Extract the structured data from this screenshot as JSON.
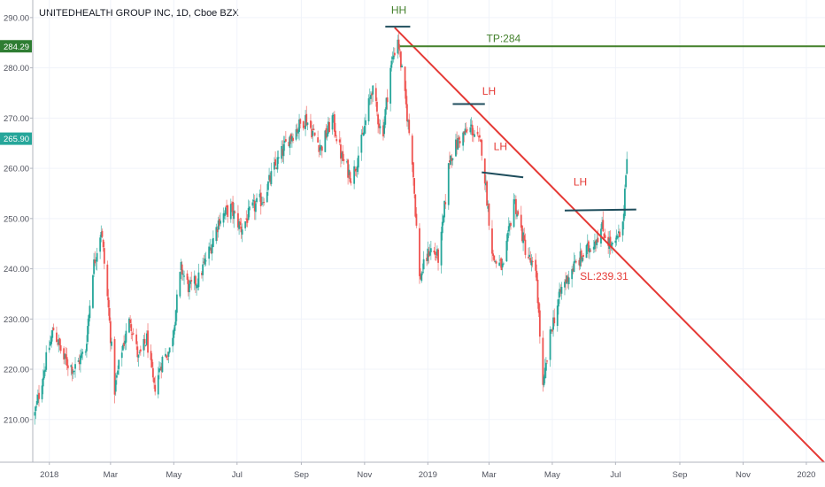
{
  "chart_data": {
    "type": "candlestick",
    "title": "UNITEDHEALTH GROUP INC, 1D, Cboe BZX",
    "y_ticks": [
      "290.00",
      "280.00",
      "270.00",
      "260.00",
      "250.00",
      "240.00",
      "230.00",
      "220.00",
      "210.00"
    ],
    "y_tick_values": [
      290,
      280,
      270,
      260,
      250,
      240,
      230,
      220,
      210
    ],
    "ylim": [
      201.5,
      293.5
    ],
    "x_tick_labels": [
      "2018",
      "Mar",
      "May",
      "Jul",
      "Sep",
      "Nov",
      "2019",
      "Mar",
      "May",
      "Jul",
      "Sep",
      "Nov",
      "2020"
    ],
    "x_tick_dates": [
      "2018-01-01",
      "2018-03-01",
      "2018-05-01",
      "2018-07-01",
      "2018-09-01",
      "2018-11-01",
      "2019-01-01",
      "2019-03-01",
      "2019-05-01",
      "2019-07-01",
      "2019-09-01",
      "2019-11-01",
      "2020-01-01"
    ],
    "xlim": [
      "2017-12-16",
      "2020-01-19"
    ],
    "price_labels": [
      {
        "value": 284.29,
        "text": "284.29",
        "color": "#2e7d32"
      },
      {
        "value": 265.9,
        "text": "265.90",
        "color": "#26a69a"
      }
    ],
    "colors": {
      "up": "#26a69a",
      "down": "#ef5350",
      "trendline": "#e53935",
      "target": "#43802b",
      "level": "#1e4d5c"
    },
    "price_path": [
      [
        "2017-12-18",
        211
      ],
      [
        "2017-12-28",
        221
      ],
      [
        "2018-01-05",
        228
      ],
      [
        "2018-01-15",
        222
      ],
      [
        "2018-01-25",
        220
      ],
      [
        "2018-02-05",
        224
      ],
      [
        "2018-02-12",
        240
      ],
      [
        "2018-02-20",
        248
      ],
      [
        "2018-02-27",
        232
      ],
      [
        "2018-03-05",
        216
      ],
      [
        "2018-03-12",
        224
      ],
      [
        "2018-03-20",
        230
      ],
      [
        "2018-03-28",
        222
      ],
      [
        "2018-04-05",
        226
      ],
      [
        "2018-04-12",
        216
      ],
      [
        "2018-04-20",
        222
      ],
      [
        "2018-04-28",
        224
      ],
      [
        "2018-05-08",
        240
      ],
      [
        "2018-05-16",
        236
      ],
      [
        "2018-05-25",
        238
      ],
      [
        "2018-06-05",
        244
      ],
      [
        "2018-06-14",
        250
      ],
      [
        "2018-06-25",
        252
      ],
      [
        "2018-07-05",
        248
      ],
      [
        "2018-07-16",
        252
      ],
      [
        "2018-07-26",
        254
      ],
      [
        "2018-08-06",
        260
      ],
      [
        "2018-08-20",
        266
      ],
      [
        "2018-09-05",
        270
      ],
      [
        "2018-09-20",
        264
      ],
      [
        "2018-10-01",
        270
      ],
      [
        "2018-10-10",
        262
      ],
      [
        "2018-10-20",
        258
      ],
      [
        "2018-10-30",
        266
      ],
      [
        "2018-11-08",
        276
      ],
      [
        "2018-11-18",
        266
      ],
      [
        "2018-11-26",
        280
      ],
      [
        "2018-12-03",
        286
      ],
      [
        "2018-12-10",
        274
      ],
      [
        "2018-12-17",
        262
      ],
      [
        "2018-12-24",
        238
      ],
      [
        "2019-01-03",
        244
      ],
      [
        "2019-01-12",
        242
      ],
      [
        "2019-01-22",
        262
      ],
      [
        "2019-02-01",
        266
      ],
      [
        "2019-02-12",
        268
      ],
      [
        "2019-02-22",
        264
      ],
      [
        "2019-03-05",
        242
      ],
      [
        "2019-03-15",
        240
      ],
      [
        "2019-03-25",
        254
      ],
      [
        "2019-04-05",
        244
      ],
      [
        "2019-04-16",
        238
      ],
      [
        "2019-04-22",
        216
      ],
      [
        "2019-04-30",
        228
      ],
      [
        "2019-05-10",
        236
      ],
      [
        "2019-05-20",
        240
      ],
      [
        "2019-06-05",
        244
      ],
      [
        "2019-06-18",
        248
      ],
      [
        "2019-06-28",
        244
      ],
      [
        "2019-07-08",
        248
      ],
      [
        "2019-07-11",
        260
      ],
      [
        "2019-07-13",
        265.9
      ]
    ],
    "annotations": [
      {
        "text": "HH",
        "color": "#43802b",
        "date": "2018-12-04",
        "value": 290.8
      },
      {
        "text": "TP:284",
        "color": "#43802b",
        "date": "2019-03-15",
        "value": 285.1
      },
      {
        "text": "LH",
        "color": "#e53935",
        "date": "2019-03-01",
        "value": 274.6
      },
      {
        "text": "LH",
        "color": "#e53935",
        "date": "2019-03-12",
        "value": 263.6
      },
      {
        "text": "LH",
        "color": "#e53935",
        "date": "2019-05-28",
        "value": 256.6
      },
      {
        "text": "SL:239.31",
        "color": "#e53935",
        "date": "2019-06-20",
        "value": 237.8
      }
    ],
    "lines": [
      {
        "kind": "trendline",
        "from": [
          "2018-11-30",
          288
        ],
        "to": [
          "2020-01-18",
          201.5
        ]
      },
      {
        "kind": "target",
        "from": [
          "2018-12-05",
          284.3
        ],
        "to": [
          "2020-01-19",
          284.3
        ]
      },
      {
        "kind": "level",
        "from": [
          "2018-11-21",
          288.2
        ],
        "to": [
          "2018-12-15",
          288.2
        ]
      },
      {
        "kind": "level",
        "from": [
          "2019-01-25",
          272.8
        ],
        "to": [
          "2019-02-25",
          272.8
        ]
      },
      {
        "kind": "level",
        "from": [
          "2019-02-22",
          259.2
        ],
        "to": [
          "2019-04-03",
          258.2
        ]
      },
      {
        "kind": "level",
        "from": [
          "2019-05-13",
          251.6
        ],
        "to": [
          "2019-07-21",
          251.8
        ]
      }
    ]
  }
}
